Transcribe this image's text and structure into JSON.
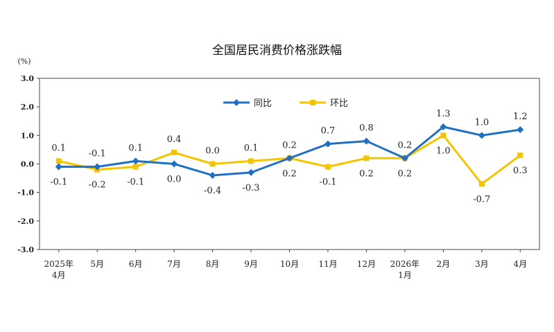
{
  "chart_data": {
    "type": "line",
    "title": "全国居民消费价格涨跌幅",
    "ylabel": "(%)",
    "ylim": [
      -3.0,
      3.0
    ],
    "yticks": [
      "3.0",
      "2.0",
      "1.0",
      "0.0",
      "-1.0",
      "-2.0",
      "-3.0"
    ],
    "categories": [
      [
        "2025年",
        "4月"
      ],
      [
        "5月"
      ],
      [
        "6月"
      ],
      [
        "7月"
      ],
      [
        "8月"
      ],
      [
        "9月"
      ],
      [
        "10月"
      ],
      [
        "11月"
      ],
      [
        "12月"
      ],
      [
        "2026年",
        "1月"
      ],
      [
        "2月"
      ],
      [
        "3月"
      ],
      [
        "4月"
      ]
    ],
    "grid": false,
    "legend_position": "top-center",
    "series": [
      {
        "name": "同比",
        "color": "#1f6fc5",
        "marker": "diamond",
        "values": [
          -0.1,
          -0.1,
          0.1,
          0.0,
          -0.4,
          -0.3,
          0.2,
          0.7,
          0.8,
          0.2,
          1.3,
          1.0,
          1.2
        ],
        "labels": [
          "-0.1",
          "-0.1",
          "0.1",
          "0.0",
          "-0.4",
          "-0.3",
          "0.2",
          "0.7",
          "0.8",
          "0.2",
          "1.3",
          "1.0",
          "1.2"
        ],
        "label_pos": [
          "below",
          "above",
          "above",
          "below",
          "below",
          "below",
          "above",
          "above",
          "above",
          "above",
          "above",
          "above",
          "above"
        ]
      },
      {
        "name": "环比",
        "color": "#f5c400",
        "marker": "square",
        "values": [
          0.1,
          -0.2,
          -0.1,
          0.4,
          0.0,
          0.1,
          0.2,
          -0.1,
          0.2,
          0.2,
          1.0,
          -0.7,
          0.3
        ],
        "labels": [
          "0.1",
          "-0.2",
          "-0.1",
          "0.4",
          "0.0",
          "0.1",
          "0.2",
          "-0.1",
          "0.2",
          "0.2",
          "1.0",
          "-0.7",
          "0.3"
        ],
        "label_pos": [
          "above",
          "below",
          "below",
          "above",
          "above",
          "above",
          "below",
          "below",
          "below",
          "below",
          "below",
          "below",
          "below"
        ]
      }
    ]
  }
}
